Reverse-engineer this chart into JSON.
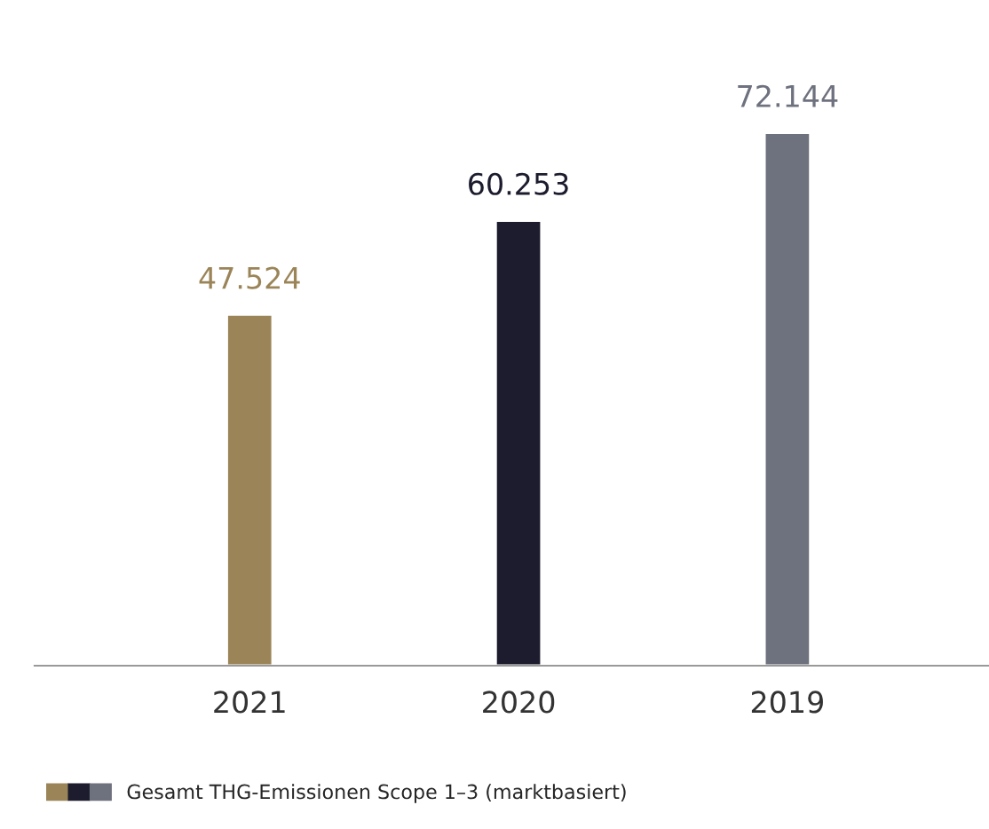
{
  "chart_data": {
    "type": "bar",
    "categories": [
      "2021",
      "2020",
      "2019"
    ],
    "series": [
      {
        "name": "Gesamt THG-Emissionen Scope 1–3 (marktbasiert)",
        "colors": [
          "#9b8558",
          "#1c1c2e",
          "#6e717e"
        ],
        "values": [
          47524,
          60253,
          72144
        ],
        "value_labels": [
          "47.524",
          "60.253",
          "72.144"
        ]
      }
    ],
    "legend": "bottom left",
    "grid": false
  }
}
